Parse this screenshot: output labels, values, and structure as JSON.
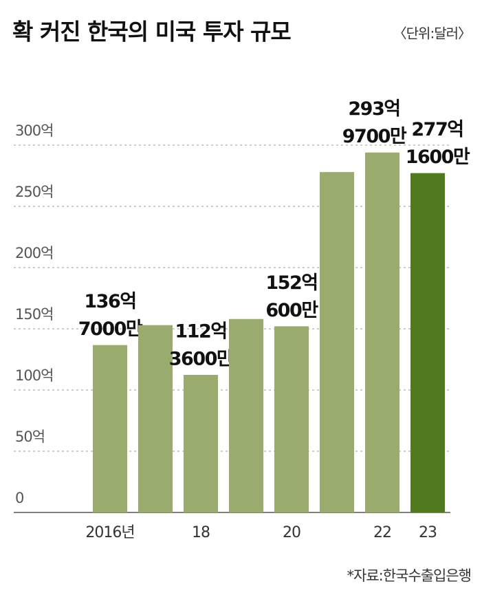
{
  "chart_data": {
    "type": "bar",
    "title": "확 커진 한국의 미국 투자 규모",
    "subtitle": "〈단위:달러〉",
    "source": "*자료:한국수출입은행",
    "categories": [
      "2016년",
      null,
      "18",
      null,
      "20",
      null,
      "22",
      "23"
    ],
    "values": [
      136.7,
      153,
      112.36,
      158,
      152.06,
      278,
      293.97,
      277.16
    ],
    "value_labels": [
      [
        "136억",
        "7000만"
      ],
      null,
      [
        "112억",
        "3600만"
      ],
      null,
      [
        "152억",
        "600만"
      ],
      null,
      [
        "293억",
        "9700만"
      ],
      [
        "277억",
        "1600만"
      ]
    ],
    "colors": [
      "#9aab6e",
      "#9aab6e",
      "#9aab6e",
      "#9aab6e",
      "#9aab6e",
      "#9aab6e",
      "#9aab6e",
      "#4f7a1e"
    ],
    "ylim": [
      0,
      300
    ],
    "yticks": [
      0,
      {
        "value": 50,
        "label": "50억"
      },
      {
        "value": 100,
        "label": "100억"
      },
      {
        "value": 150,
        "label": "150억"
      },
      {
        "value": 200,
        "label": "200억"
      },
      {
        "value": 250,
        "label": "250억"
      },
      {
        "value": 300,
        "label": "300억"
      }
    ],
    "grid": true
  }
}
